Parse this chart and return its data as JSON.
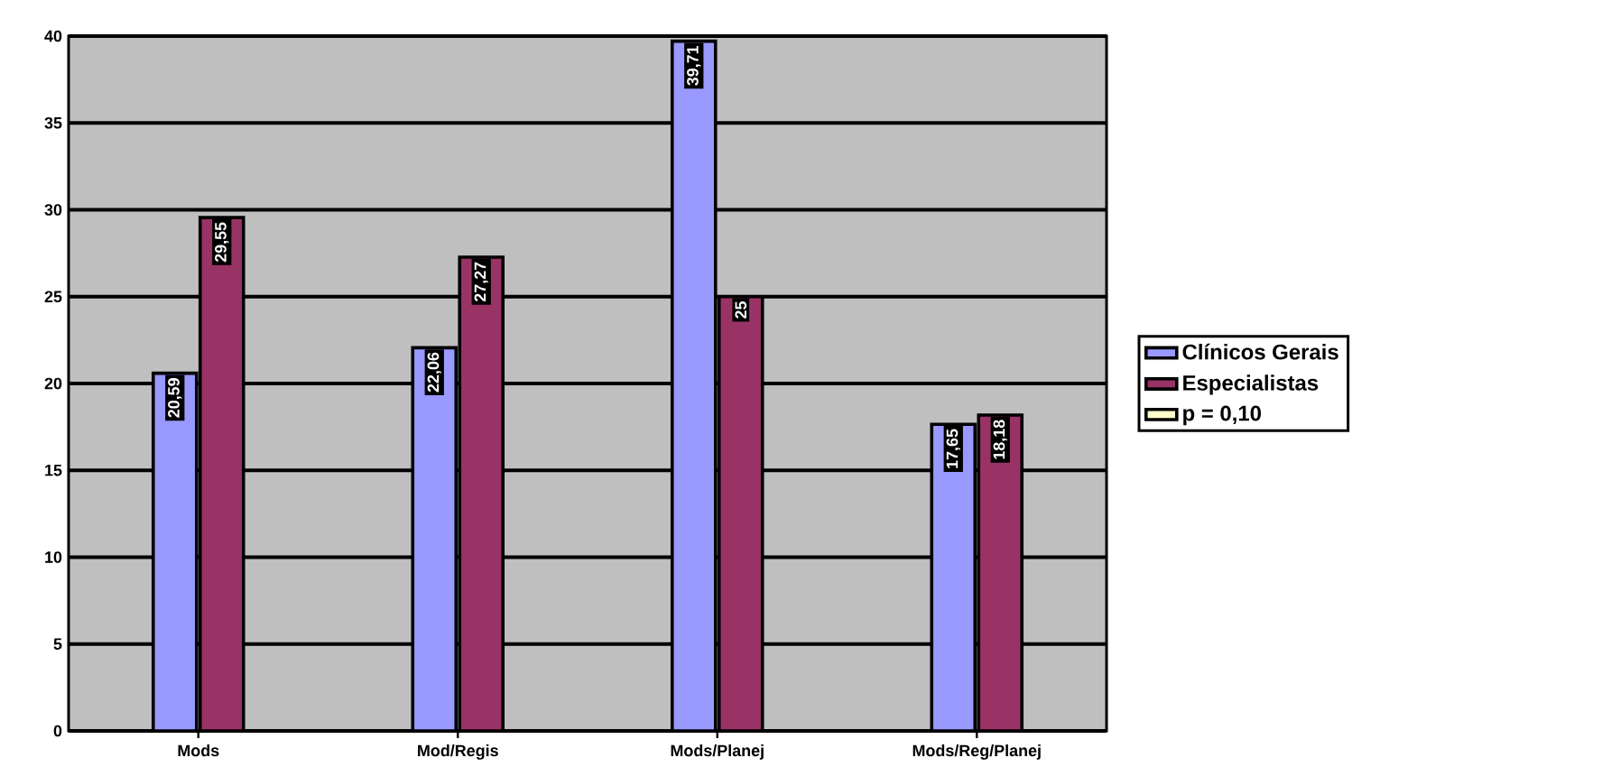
{
  "chart_data": {
    "type": "bar",
    "categories": [
      "Mods",
      "Mod/Regis",
      "Mods/Planej",
      "Mods/Reg/Planej"
    ],
    "series": [
      {
        "name": "Clínicos Gerais",
        "color": "#9999ff",
        "values": [
          20.59,
          22.06,
          39.71,
          17.65
        ],
        "value_labels": [
          "20,59",
          "22,06",
          "39,71",
          "17,65"
        ]
      },
      {
        "name": "Especialistas",
        "color": "#993366",
        "values": [
          29.55,
          27.27,
          25,
          18.18
        ],
        "value_labels": [
          "29,55",
          "27,27",
          "25",
          "18,18"
        ]
      },
      {
        "name": "p = 0,10",
        "color": "#ffffcc",
        "values": [
          null,
          null,
          null,
          null
        ]
      }
    ],
    "ylim": [
      0,
      40
    ],
    "yticks": [
      0,
      5,
      10,
      15,
      20,
      25,
      30,
      35,
      40
    ],
    "grid": "y",
    "legend": "right"
  }
}
